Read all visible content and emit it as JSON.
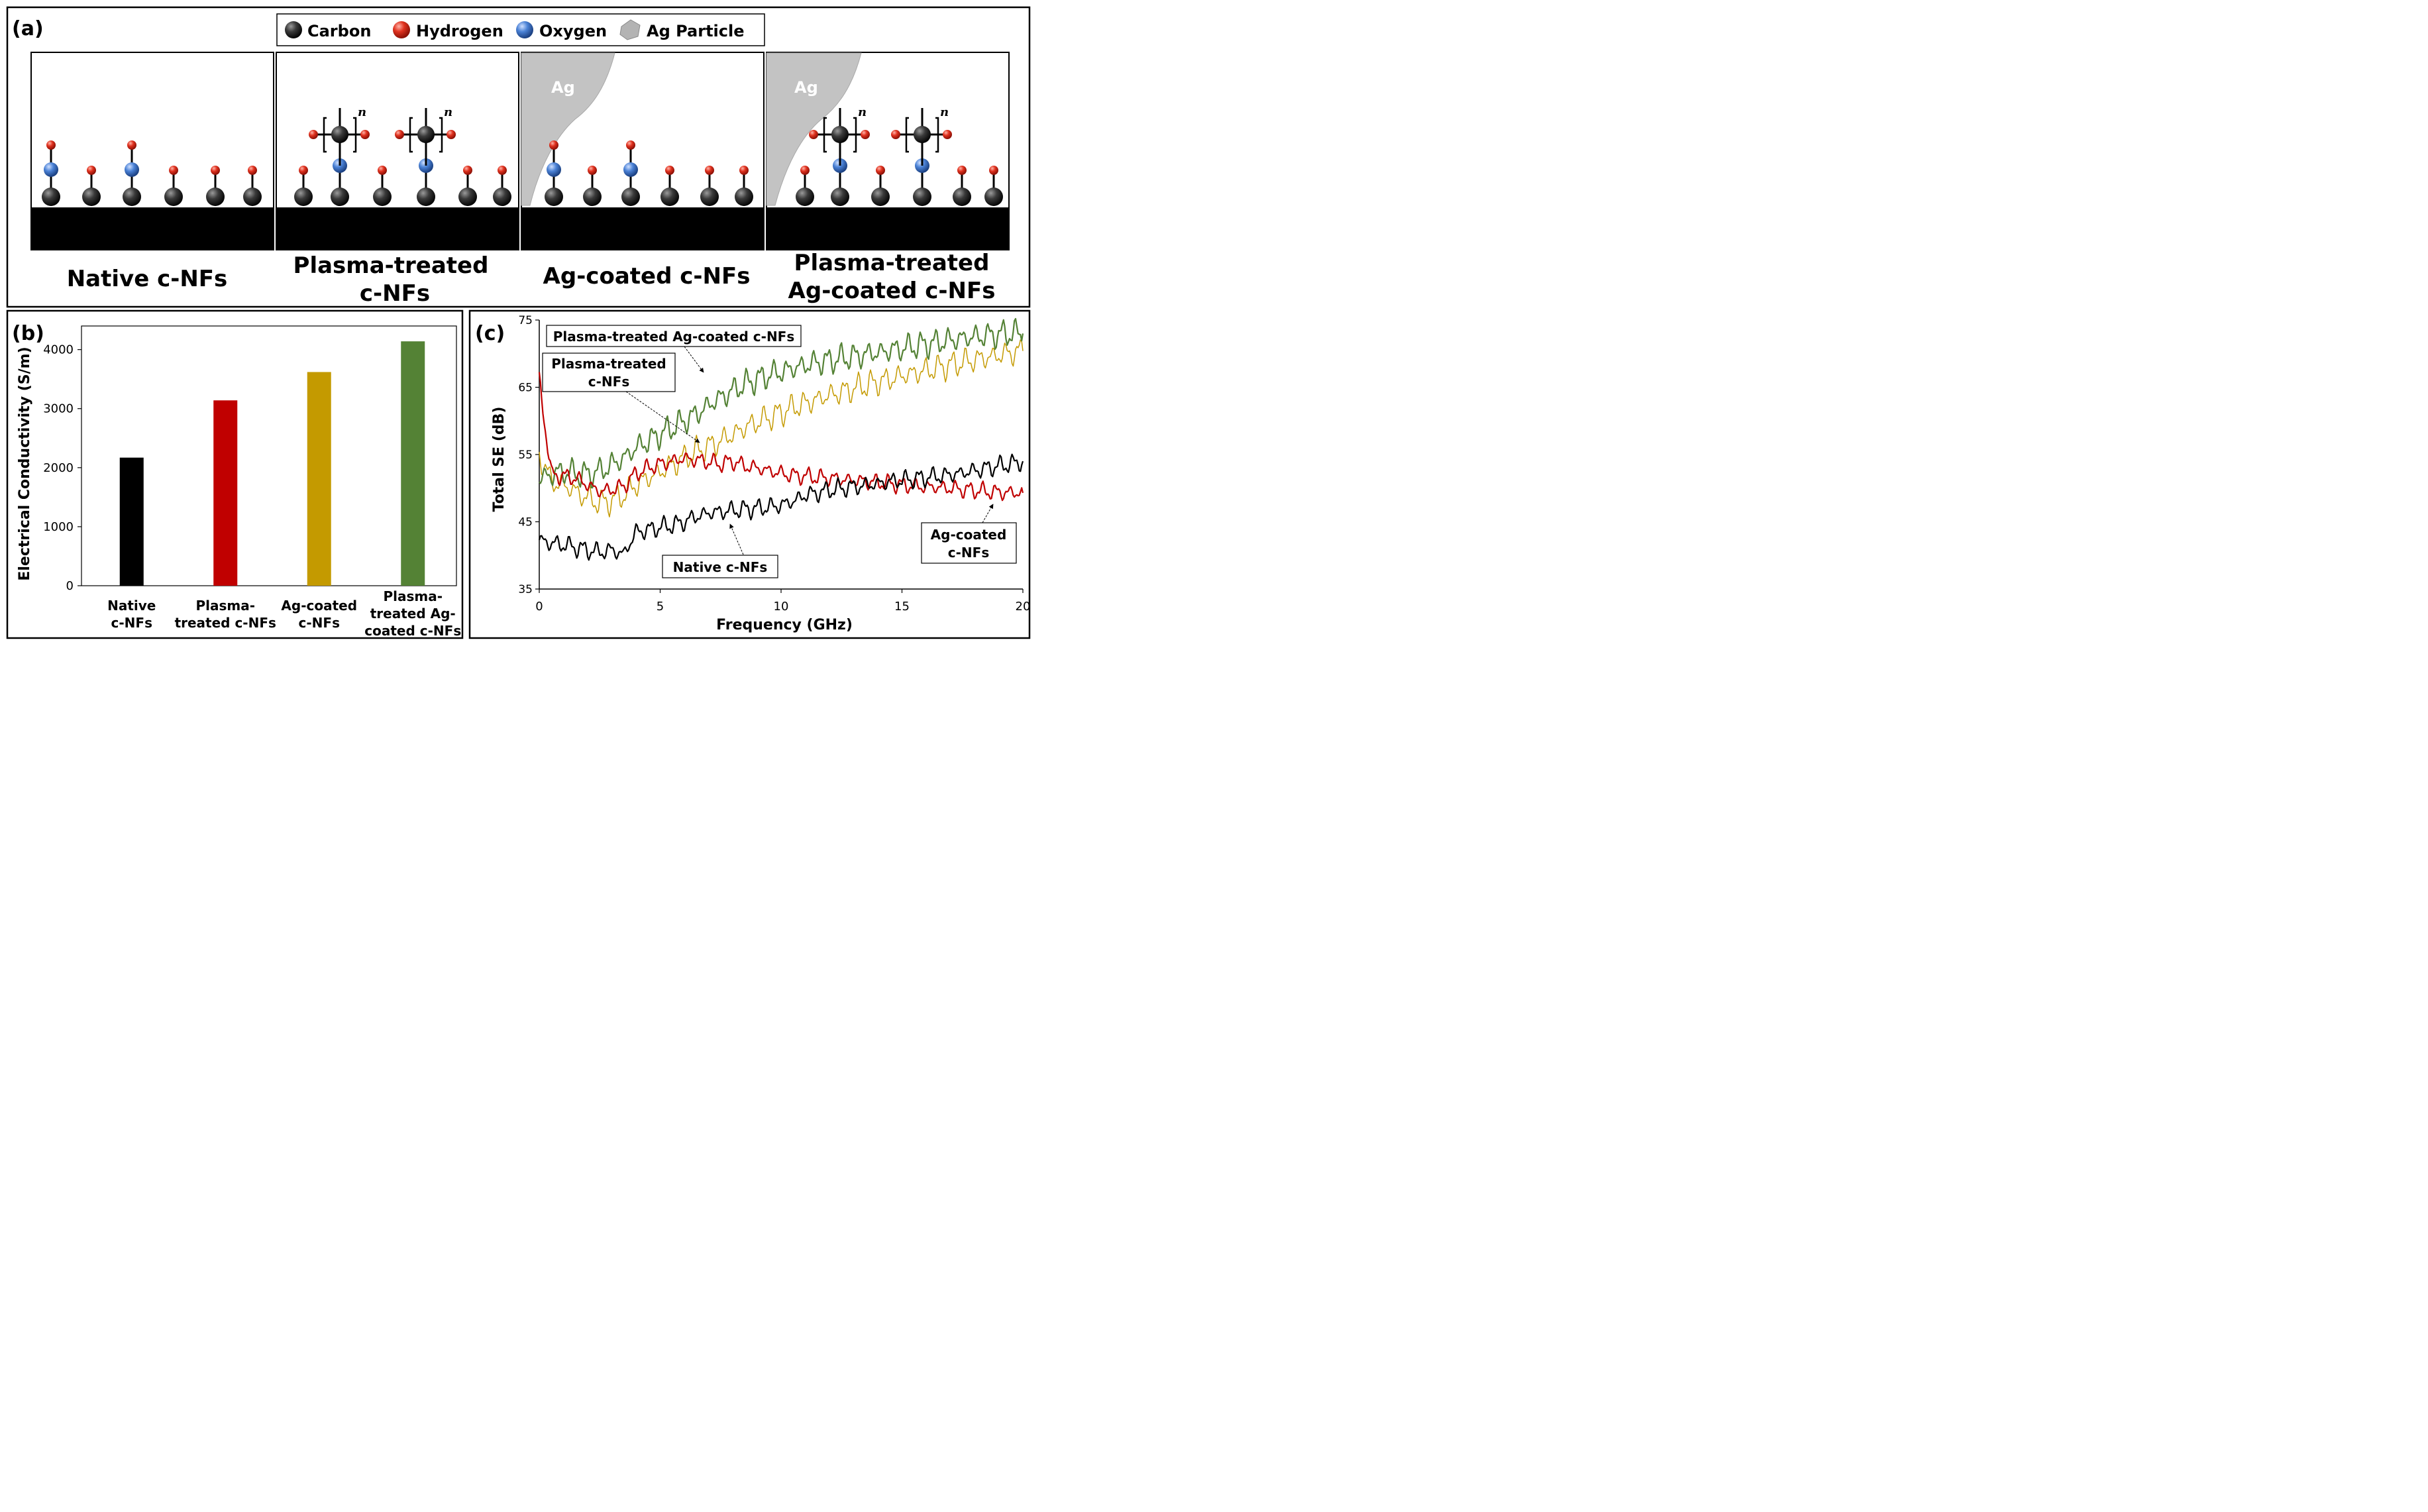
{
  "panel_a": {
    "label": "(a)",
    "legend": [
      {
        "label": "Carbon",
        "kind": "atom",
        "color": "#2b2b2b"
      },
      {
        "label": "Hydrogen",
        "kind": "atom",
        "color": "#d9281e"
      },
      {
        "label": "Oxygen",
        "kind": "atom",
        "color": "#3f73c4"
      },
      {
        "label": "Ag Particle",
        "kind": "hexagon",
        "color": "#b3b3b3"
      }
    ],
    "ag_label": "Ag",
    "repeat_n": "n",
    "captions": [
      {
        "lines": [
          "Native c-NFs"
        ]
      },
      {
        "lines": [
          "Plasma-treated",
          "c-NFs"
        ]
      },
      {
        "lines": [
          "Ag-coated c-NFs"
        ]
      },
      {
        "lines": [
          "Plasma-treated",
          "Ag-coated c-NFs"
        ]
      }
    ]
  },
  "chart_data": [
    {
      "panel": "(b)",
      "type": "bar",
      "categories": [
        [
          "Native",
          "c-NFs"
        ],
        [
          "Plasma-",
          "treated c-NFs"
        ],
        [
          "Ag-coated",
          "c-NFs"
        ],
        [
          "Plasma-",
          "treated Ag-",
          "coated c-NFs"
        ]
      ],
      "values": [
        2170,
        3140,
        3620,
        4140
      ],
      "colors": [
        "#000000",
        "#c00000",
        "#c49a00",
        "#548235"
      ],
      "ylabel": "Electrical Conductivity (S/m)",
      "xlabel": "",
      "ylim": [
        0,
        4400
      ],
      "yticks": [
        0,
        1000,
        2000,
        3000,
        4000
      ]
    },
    {
      "panel": "(c)",
      "type": "line",
      "xlabel": "Frequency (GHz)",
      "ylabel": "Total SE (dB)",
      "xlim": [
        0,
        20
      ],
      "ylim": [
        35,
        75
      ],
      "xticks": [
        0,
        5,
        10,
        15,
        20
      ],
      "yticks": [
        35,
        45,
        55,
        65,
        75
      ],
      "x": [
        0,
        0.5,
        1,
        1.5,
        2,
        2.5,
        3,
        3.5,
        4,
        4.5,
        5,
        5.5,
        6,
        6.5,
        7,
        7.5,
        8,
        8.5,
        9,
        9.5,
        10,
        10.5,
        11,
        11.5,
        12,
        12.5,
        13,
        13.5,
        14,
        14.5,
        15,
        15.5,
        16,
        16.5,
        17,
        17.5,
        18,
        18.5,
        19,
        19.5,
        20
      ],
      "series": [
        {
          "name": "Native c-NFs",
          "color": "#000000",
          "values": [
            42.3,
            41.8,
            41.6,
            41.2,
            40.8,
            40.5,
            40.8,
            40.2,
            43.5,
            43.8,
            44.2,
            44.5,
            45.0,
            45.8,
            46.3,
            46.5,
            46.7,
            46.9,
            47.0,
            47.2,
            47.5,
            48.0,
            49.0,
            49.3,
            49.7,
            50.0,
            50.2,
            50.4,
            50.7,
            51.0,
            51.2,
            51.4,
            51.6,
            51.8,
            52.0,
            52.3,
            52.6,
            53.0,
            53.3,
            53.6,
            54.0
          ],
          "callout": [
            "Native c-NFs"
          ]
        },
        {
          "name": "Ag-coated c-NFs",
          "color": "#c00000",
          "values": [
            66.0,
            52.0,
            51.8,
            51.5,
            50.5,
            49.5,
            49.8,
            50.3,
            52.2,
            53.0,
            53.6,
            54.0,
            54.4,
            54.2,
            53.9,
            53.6,
            54.0,
            53.3,
            53.0,
            52.6,
            52.2,
            51.9,
            51.8,
            51.6,
            51.5,
            51.3,
            51.2,
            51.0,
            50.9,
            50.7,
            50.5,
            50.3,
            50.2,
            50.1,
            50.0,
            49.8,
            49.7,
            49.5,
            49.4,
            49.3,
            49.3
          ],
          "callout": [
            "Ag-coated",
            "c-NFs"
          ]
        },
        {
          "name": "Plasma-treated c-NFs",
          "color": "#c49a00",
          "values": [
            55.0,
            51.0,
            50.5,
            49.5,
            48.5,
            47.8,
            48.2,
            49.0,
            50.5,
            51.5,
            52.5,
            53.5,
            54.5,
            55.5,
            56.2,
            57.0,
            58.0,
            59.0,
            59.8,
            60.5,
            61.2,
            62.0,
            62.6,
            63.2,
            63.8,
            64.3,
            64.8,
            65.3,
            65.8,
            66.2,
            66.7,
            67.1,
            67.5,
            67.9,
            68.3,
            68.7,
            69.1,
            69.4,
            69.8,
            70.1,
            70.4
          ],
          "callout": [
            "Plasma-treated",
            "c-NFs"
          ]
        },
        {
          "name": "Plasma-treated Ag-coated c-NFs",
          "color": "#548235",
          "values": [
            51.5,
            52.0,
            52.5,
            52.2,
            52.0,
            52.5,
            53.5,
            54.5,
            56.0,
            57.0,
            58.0,
            59.0,
            60.0,
            61.0,
            62.3,
            63.5,
            64.5,
            65.5,
            66.2,
            66.8,
            67.3,
            67.8,
            68.3,
            68.7,
            69.0,
            69.3,
            69.6,
            69.9,
            70.2,
            70.5,
            70.8,
            71.1,
            71.4,
            71.7,
            72.0,
            72.3,
            72.5,
            72.7,
            72.9,
            73.0,
            73.0
          ],
          "callout": [
            "Plasma-treated Ag-coated c-NFs"
          ]
        }
      ]
    }
  ]
}
